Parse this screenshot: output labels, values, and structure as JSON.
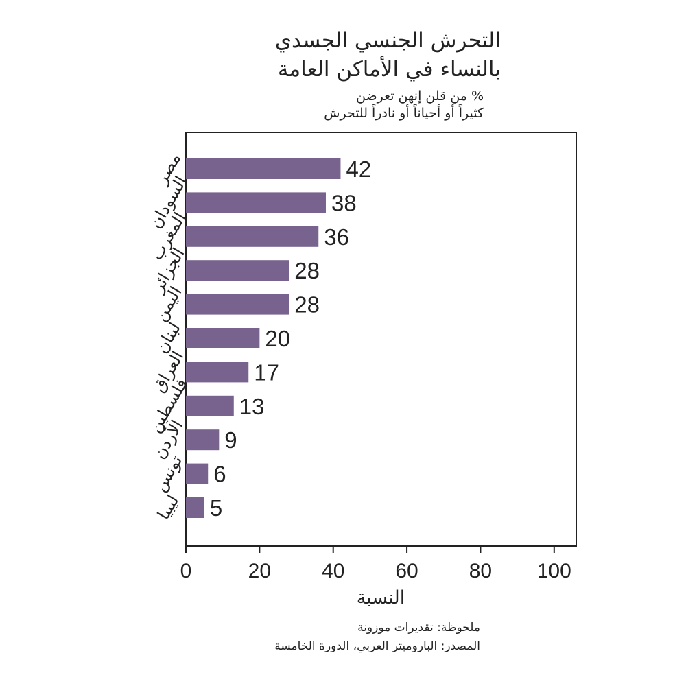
{
  "chart_data": {
    "type": "bar",
    "orientation": "horizontal",
    "title": "التحرش الجنسي الجسدي بالنساء في الأماكن العامة",
    "title_lines": [
      "التحرش الجنسي الجسدي",
      "بالنساء في الأماكن العامة"
    ],
    "subtitle_lines": [
      "% من قلن إنهن تعرضن",
      "كثيراً أو أحياناً أو نادراً للتحرش"
    ],
    "categories": [
      "مصر",
      "السودان",
      "المغرب",
      "الجزائر",
      "اليمن",
      "لبنان",
      "العراق",
      "فلسطين",
      "الأردن",
      "تونس",
      "ليبيا"
    ],
    "values": [
      42,
      38,
      36,
      28,
      28,
      20,
      17,
      13,
      9,
      6,
      5
    ],
    "value_labels": [
      "42",
      "38",
      "36",
      "28",
      "28",
      "20",
      "17",
      "13",
      "9",
      "6",
      "5"
    ],
    "xlabel": "النسبة",
    "xlim": [
      0,
      106
    ],
    "xticks": [
      0,
      20,
      40,
      60,
      80,
      100
    ],
    "xtick_labels": [
      "0",
      "20",
      "40",
      "60",
      "80",
      "100"
    ],
    "grid": false,
    "bar_color": "#77638e"
  },
  "footer": {
    "note": "ملحوظة: تقديرات موزونة",
    "source": "المصدر: الباروميتر العربي، الدورة الخامسة"
  }
}
